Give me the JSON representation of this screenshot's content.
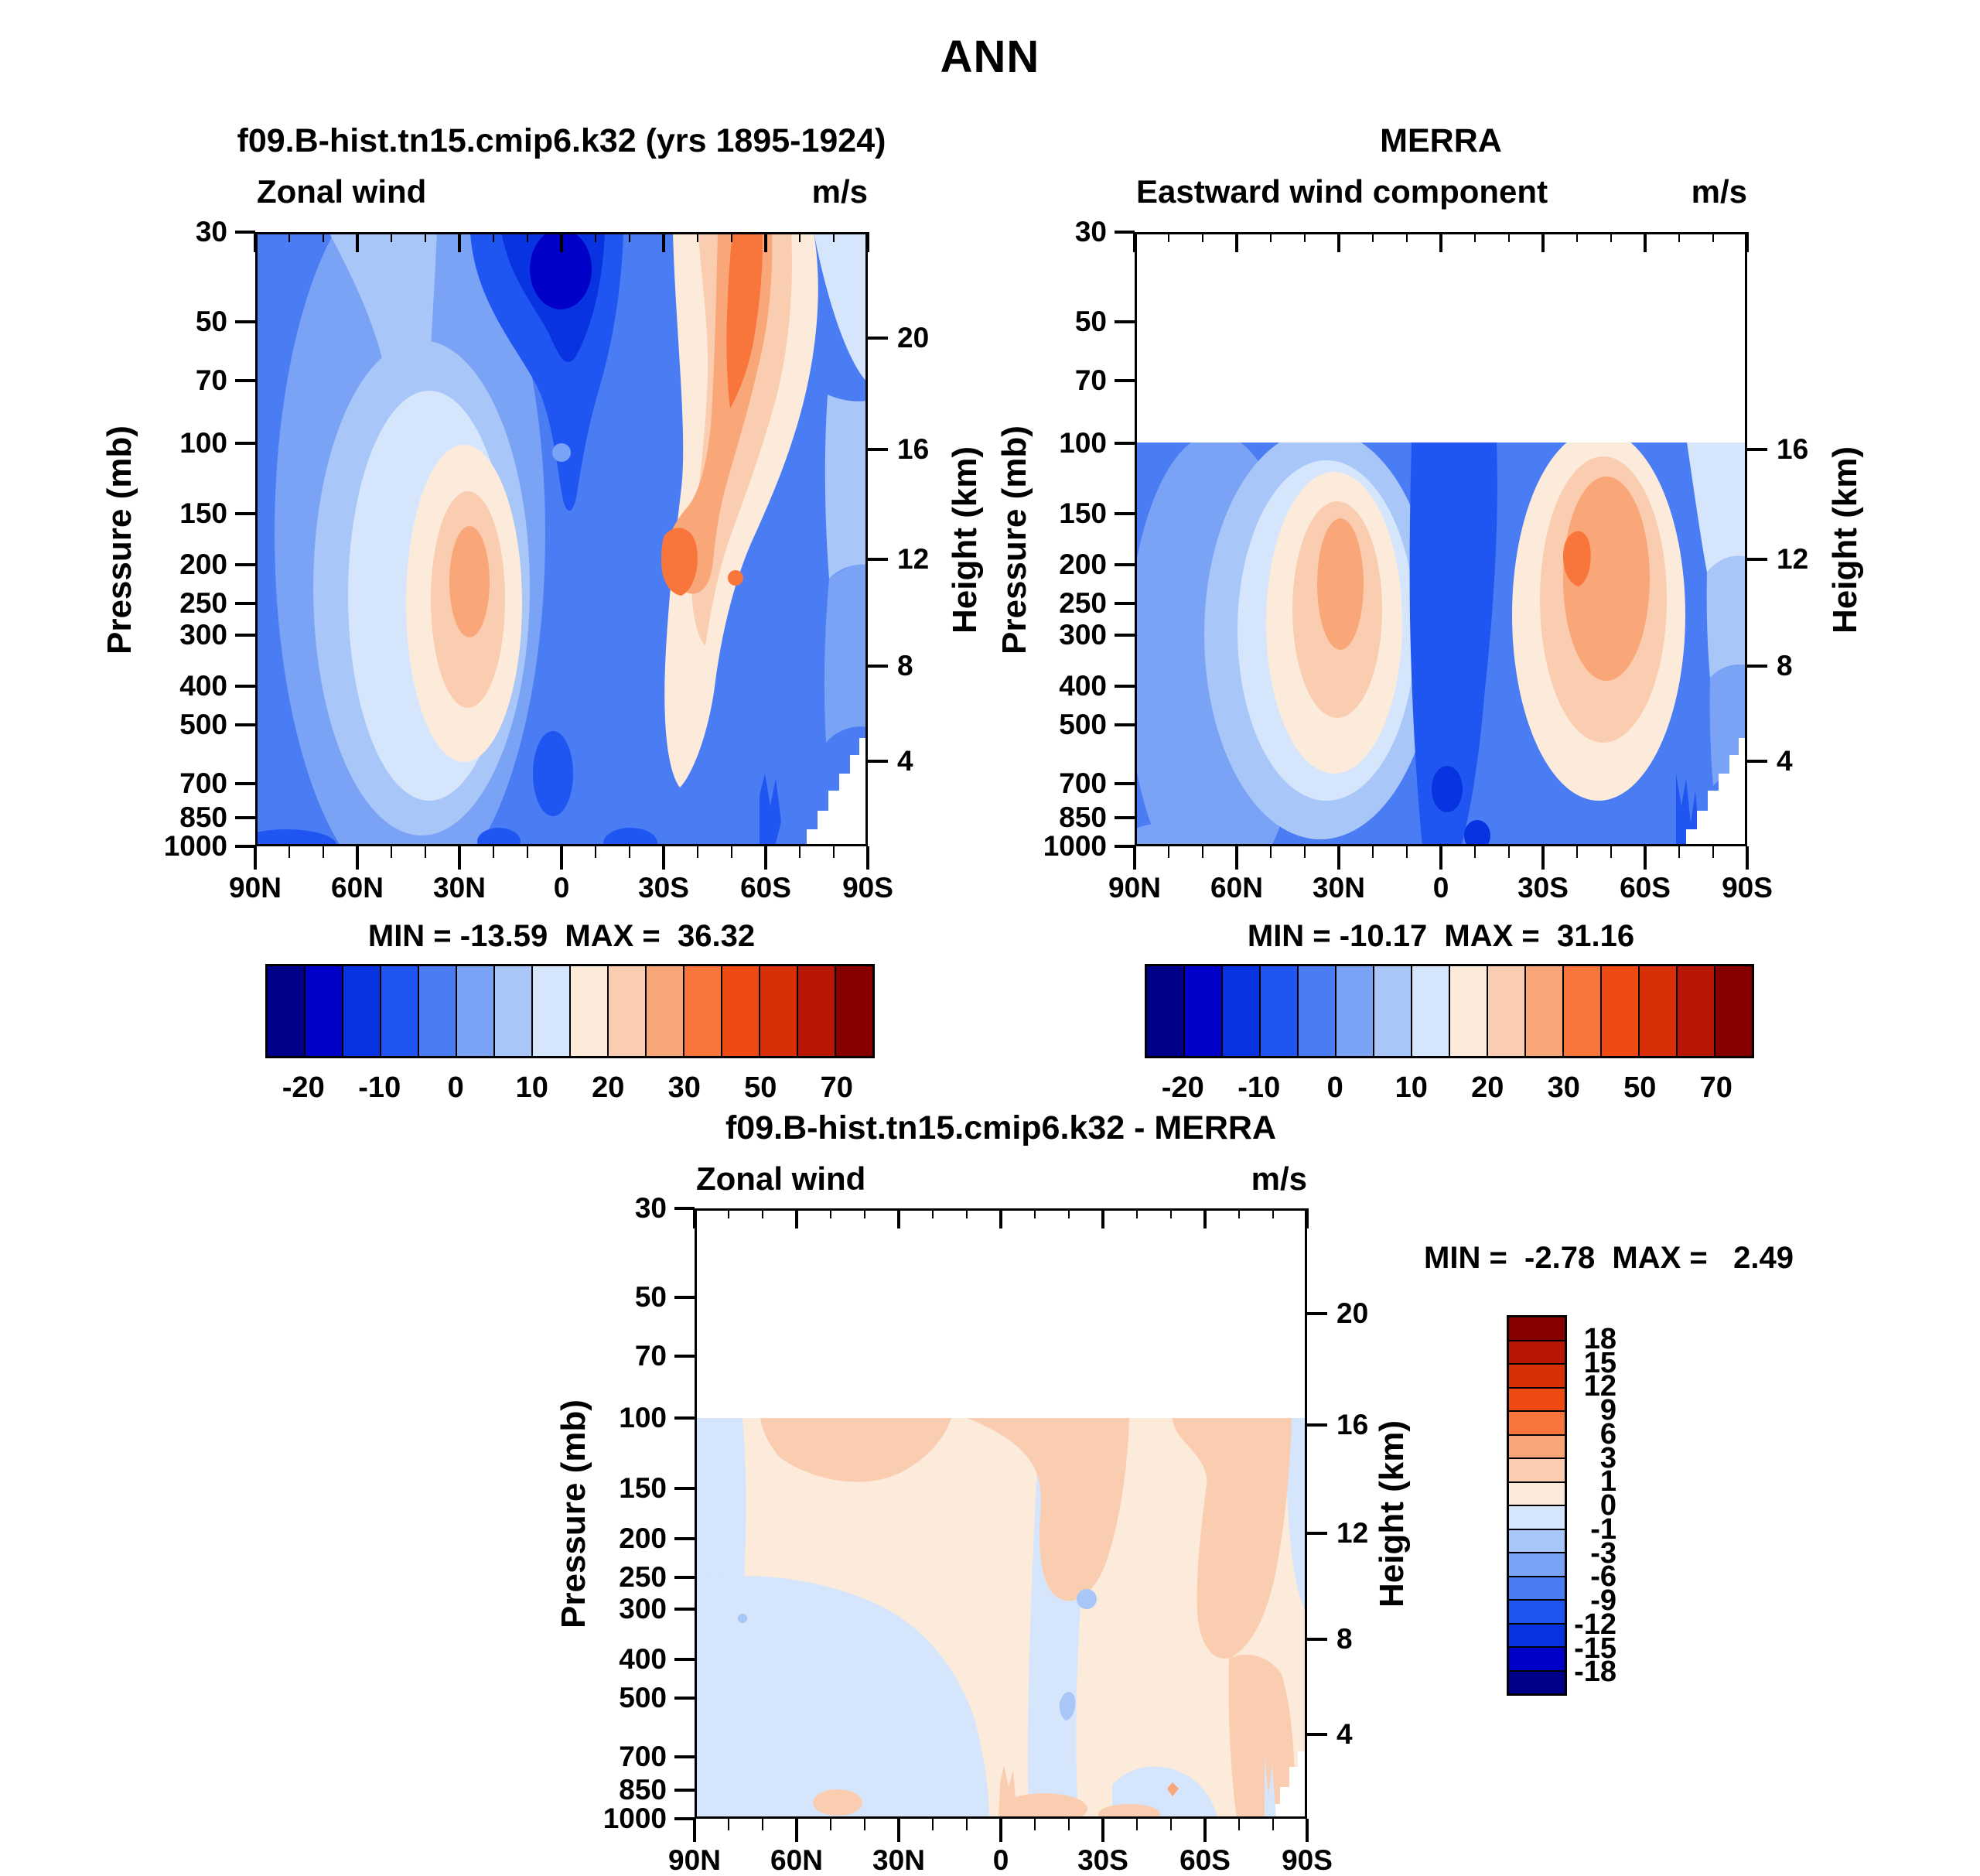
{
  "main_title": "ANN",
  "palette": [
    "#000089",
    "#0000C8",
    "#0833E0",
    "#1F56F2",
    "#4A7CF3",
    "#7AA2F5",
    "#A9C6F8",
    "#D5E5FB",
    "#FCEBDA",
    "#FACDB0",
    "#F9A679",
    "#F8763B",
    "#EF4A12",
    "#D92F07",
    "#B81604",
    "#870000"
  ],
  "axes": {
    "x_tick_labels": [
      "90N",
      "60N",
      "30N",
      "0",
      "30S",
      "60S",
      "90S"
    ],
    "x_tick_values_deg": [
      90,
      60,
      30,
      0,
      -30,
      -60,
      -90
    ],
    "x_minor_step_deg": 10,
    "pressure_ticks_mb": [
      30,
      50,
      70,
      100,
      150,
      200,
      250,
      300,
      400,
      500,
      700,
      850,
      1000
    ],
    "height_ticks_km": [
      20,
      16,
      12,
      8,
      4
    ],
    "height_tick_pressures_mb": [
      55,
      104,
      194,
      357,
      616
    ]
  },
  "colorbars": {
    "wind": {
      "labels": [
        "-20",
        "-10",
        "0",
        "10",
        "20",
        "30",
        "50",
        "70"
      ],
      "label_boundary_indices": [
        1,
        3,
        5,
        7,
        9,
        11,
        13,
        15
      ],
      "levels": [
        -20,
        -15,
        -10,
        -5,
        0,
        5,
        10,
        15,
        20,
        25,
        30,
        40,
        50,
        60,
        70
      ]
    },
    "diff": {
      "labels_top_to_bottom": [
        "18",
        "15",
        "12",
        "9",
        "6",
        "3",
        "1",
        "0",
        "-1",
        "-3",
        "-6",
        "-9",
        "-12",
        "-15",
        "-18"
      ],
      "levels": [
        -18,
        -15,
        -12,
        -9,
        -6,
        -3,
        -1,
        0,
        1,
        3,
        6,
        9,
        12,
        15,
        18
      ]
    }
  },
  "chart_data": [
    {
      "type": "contour",
      "panel": "top-left",
      "title": "f09.B-hist.tn15.cmip6.k32 (yrs 1895-1924)",
      "field_label": "Zonal wind",
      "units": "m/s",
      "stats_label": "MIN = -13.59  MAX =  36.32",
      "min": -13.59,
      "max": 36.32,
      "x_axis": "latitude 90N to 90S",
      "y_axis": "log pressure 30-1000 mb (left), height km (right)",
      "x_tick_labels": [
        "90N",
        "60N",
        "30N",
        "0",
        "30S",
        "60S",
        "90S"
      ],
      "pressure_ticks_mb": [
        30,
        50,
        70,
        100,
        150,
        200,
        250,
        300,
        400,
        500,
        700,
        850,
        1000
      ],
      "height_ticks_km": [
        20,
        16,
        12,
        8,
        4
      ],
      "contour_levels_ms": [
        -20,
        -15,
        -10,
        -5,
        0,
        5,
        10,
        15,
        20,
        25,
        30,
        40,
        50,
        60,
        70
      ],
      "data_top_mb": 30,
      "visible_features": "Westerly jet cores (25-30 m/s) near 30N and 30S at ~200 mb; stratospheric tropical easterlies at top center; southern westerly band 50S-65S above 100 mb; white Antarctic surface cutout at lower right."
    },
    {
      "type": "contour",
      "panel": "top-right",
      "title": "MERRA",
      "field_label": "Eastward wind component",
      "units": "m/s",
      "stats_label": "MIN = -10.17  MAX =  31.16",
      "min": -10.17,
      "max": 31.16,
      "x_axis": "latitude 90N to 90S",
      "y_axis": "log pressure 30-1000 mb (left), height km (right)",
      "x_tick_labels": [
        "90N",
        "60N",
        "30N",
        "0",
        "30S",
        "60S",
        "90S"
      ],
      "pressure_ticks_mb": [
        30,
        50,
        70,
        100,
        150,
        200,
        250,
        300,
        400,
        500,
        700,
        850,
        1000
      ],
      "height_ticks_km": [
        16,
        12,
        8,
        4
      ],
      "contour_levels_ms": [
        -20,
        -15,
        -10,
        -5,
        0,
        5,
        10,
        15,
        20,
        25,
        30,
        40,
        50,
        60,
        70
      ],
      "data_top_mb": 100,
      "visible_features": "No data above 100 mb; westerly jet cores near 30N and 30S at ~200 mb; tropical easterly column below 100 mb; white Antarctic surface cutout at lower right."
    },
    {
      "type": "contour",
      "panel": "bottom-center",
      "title": "f09.B-hist.tn15.cmip6.k32 - MERRA",
      "field_label": "Zonal wind",
      "units": "m/s",
      "stats_label": "MIN =  -2.78  MAX =   2.49",
      "min": -2.78,
      "max": 2.49,
      "x_axis": "latitude 90N to 90S",
      "y_axis": "log pressure 30-1000 mb (left), height km (right)",
      "x_tick_labels": [
        "90N",
        "60N",
        "30N",
        "0",
        "30S",
        "60S",
        "90S"
      ],
      "pressure_ticks_mb": [
        30,
        50,
        70,
        100,
        150,
        200,
        250,
        300,
        400,
        500,
        700,
        850,
        1000
      ],
      "height_ticks_km": [
        20,
        16,
        12,
        8,
        4
      ],
      "contour_levels_ms": [
        -18,
        -15,
        -12,
        -9,
        -6,
        -3,
        -1,
        0,
        1,
        3,
        6,
        9,
        12,
        15,
        18
      ],
      "data_top_mb": 100,
      "visible_features": "Differences mostly within +/-1 m/s; +1 to +3 m/s patches near 100-300 mb around 45N-25N, 5N-15S and 20S-45S and near Antarctica; small -3 to -1 m/s spots near the equator at 250 and 500 mb."
    }
  ]
}
